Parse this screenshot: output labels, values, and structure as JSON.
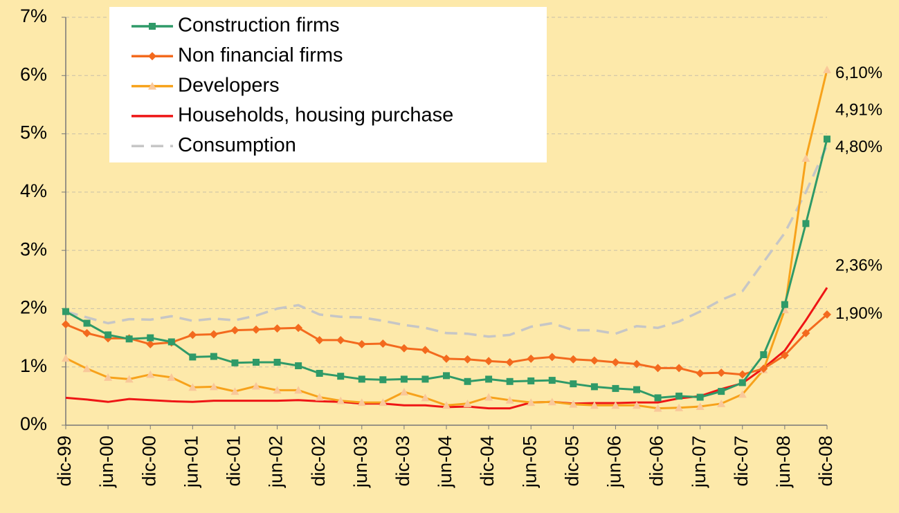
{
  "chart_data": {
    "type": "line",
    "categories": [
      "dic-99",
      null,
      "jun-00",
      null,
      "dic-00",
      null,
      "jun-01",
      null,
      "dic-01",
      null,
      "jun-02",
      null,
      "dic-02",
      null,
      "jun-03",
      null,
      "dic-03",
      null,
      "jun-04",
      null,
      "dic-04",
      null,
      "jun-05",
      null,
      "dic-05",
      null,
      "jun-06",
      null,
      "dic-06",
      null,
      "jun-07",
      null,
      "dic-07",
      null,
      "jun-08",
      null,
      "dic-08"
    ],
    "ylim": [
      0,
      7
    ],
    "yticks": [
      {
        "value": 0,
        "label": "0%"
      },
      {
        "value": 1,
        "label": "1%"
      },
      {
        "value": 2,
        "label": "2%"
      },
      {
        "value": 3,
        "label": "3%"
      },
      {
        "value": 4,
        "label": "4%"
      },
      {
        "value": 5,
        "label": "5%"
      },
      {
        "value": 6,
        "label": "6%"
      },
      {
        "value": 7,
        "label": "7%"
      }
    ],
    "grid": true,
    "legend": "top-left",
    "series": [
      {
        "name": "Construction firms",
        "color": "#2f9a68",
        "marker": "square",
        "marker_color": "#2f9a68",
        "values": [
          1.95,
          1.75,
          1.55,
          1.48,
          1.5,
          1.43,
          1.17,
          1.18,
          1.07,
          1.08,
          1.08,
          1.02,
          0.89,
          0.84,
          0.79,
          0.78,
          0.79,
          0.79,
          0.85,
          0.75,
          0.79,
          0.75,
          0.76,
          0.77,
          0.71,
          0.66,
          0.63,
          0.61,
          0.47,
          0.5,
          0.48,
          0.58,
          0.73,
          1.21,
          2.07,
          3.46,
          4.91
        ],
        "value_labels": [
          null,
          null,
          null,
          null,
          null,
          null,
          null,
          null,
          null,
          null,
          null,
          null,
          null,
          null,
          null,
          null,
          null,
          null,
          null,
          null,
          null,
          null,
          null,
          null,
          null,
          null,
          null,
          null,
          null,
          null,
          null,
          null,
          null,
          null,
          null,
          null,
          "4,91%"
        ]
      },
      {
        "name": "Non financial firms",
        "color": "#f36a1e",
        "marker": "diamond",
        "marker_color": "#f36a1e",
        "values": [
          1.73,
          1.58,
          1.49,
          1.49,
          1.39,
          1.42,
          1.55,
          1.56,
          1.63,
          1.64,
          1.66,
          1.67,
          1.46,
          1.46,
          1.39,
          1.4,
          1.32,
          1.29,
          1.14,
          1.13,
          1.1,
          1.08,
          1.14,
          1.17,
          1.13,
          1.11,
          1.08,
          1.05,
          0.98,
          0.98,
          0.89,
          0.9,
          0.87,
          0.97,
          1.2,
          1.58,
          1.9
        ],
        "value_labels": [
          null,
          null,
          null,
          null,
          null,
          null,
          null,
          null,
          null,
          null,
          null,
          null,
          null,
          null,
          null,
          null,
          null,
          null,
          null,
          null,
          null,
          null,
          null,
          null,
          null,
          null,
          null,
          null,
          null,
          null,
          null,
          null,
          null,
          null,
          null,
          null,
          "1,90%"
        ]
      },
      {
        "name": "Developers",
        "color": "#f7a21b",
        "marker": "triangle",
        "marker_color": "#f9c89a",
        "values": [
          1.15,
          0.97,
          0.82,
          0.79,
          0.87,
          0.82,
          0.65,
          0.66,
          0.58,
          0.67,
          0.6,
          0.6,
          0.48,
          0.42,
          0.39,
          0.39,
          0.57,
          0.47,
          0.34,
          0.37,
          0.48,
          0.43,
          0.39,
          0.4,
          0.36,
          0.34,
          0.34,
          0.34,
          0.29,
          0.3,
          0.32,
          0.37,
          0.53,
          0.95,
          1.98,
          4.58,
          6.1
        ],
        "value_labels": [
          null,
          null,
          null,
          null,
          null,
          null,
          null,
          null,
          null,
          null,
          null,
          null,
          null,
          null,
          null,
          null,
          null,
          null,
          null,
          null,
          null,
          null,
          null,
          null,
          null,
          null,
          null,
          null,
          null,
          null,
          null,
          null,
          null,
          null,
          null,
          null,
          "6,10%"
        ]
      },
      {
        "name": "Households, housing purchase",
        "color": "#ee1515",
        "marker": null,
        "values": [
          0.47,
          0.44,
          0.4,
          0.45,
          0.43,
          0.41,
          0.4,
          0.42,
          0.42,
          0.42,
          0.42,
          0.43,
          0.41,
          0.4,
          0.37,
          0.37,
          0.34,
          0.34,
          0.31,
          0.32,
          0.29,
          0.29,
          0.39,
          0.4,
          0.37,
          0.38,
          0.38,
          0.39,
          0.39,
          0.46,
          0.5,
          0.62,
          0.72,
          0.98,
          1.28,
          1.8,
          2.36
        ],
        "value_labels": [
          null,
          null,
          null,
          null,
          null,
          null,
          null,
          null,
          null,
          null,
          null,
          null,
          null,
          null,
          null,
          null,
          null,
          null,
          null,
          null,
          null,
          null,
          null,
          null,
          null,
          null,
          null,
          null,
          null,
          null,
          null,
          null,
          null,
          null,
          null,
          null,
          "2,36%"
        ]
      },
      {
        "name": "Consumption",
        "color": "#c6c6c6",
        "marker": null,
        "line_style": "dashed",
        "values": [
          1.95,
          1.85,
          1.75,
          1.82,
          1.81,
          1.87,
          1.79,
          1.83,
          1.8,
          1.88,
          2.0,
          2.06,
          1.9,
          1.86,
          1.85,
          1.79,
          1.72,
          1.67,
          1.58,
          1.57,
          1.52,
          1.55,
          1.69,
          1.75,
          1.63,
          1.63,
          1.57,
          1.7,
          1.67,
          1.78,
          1.95,
          2.15,
          2.3,
          2.8,
          3.3,
          4.0,
          4.8
        ],
        "value_labels": [
          null,
          null,
          null,
          null,
          null,
          null,
          null,
          null,
          null,
          null,
          null,
          null,
          null,
          null,
          null,
          null,
          null,
          null,
          null,
          null,
          null,
          null,
          null,
          null,
          null,
          null,
          null,
          null,
          null,
          null,
          null,
          null,
          null,
          null,
          null,
          null,
          "4,80%"
        ]
      }
    ]
  }
}
